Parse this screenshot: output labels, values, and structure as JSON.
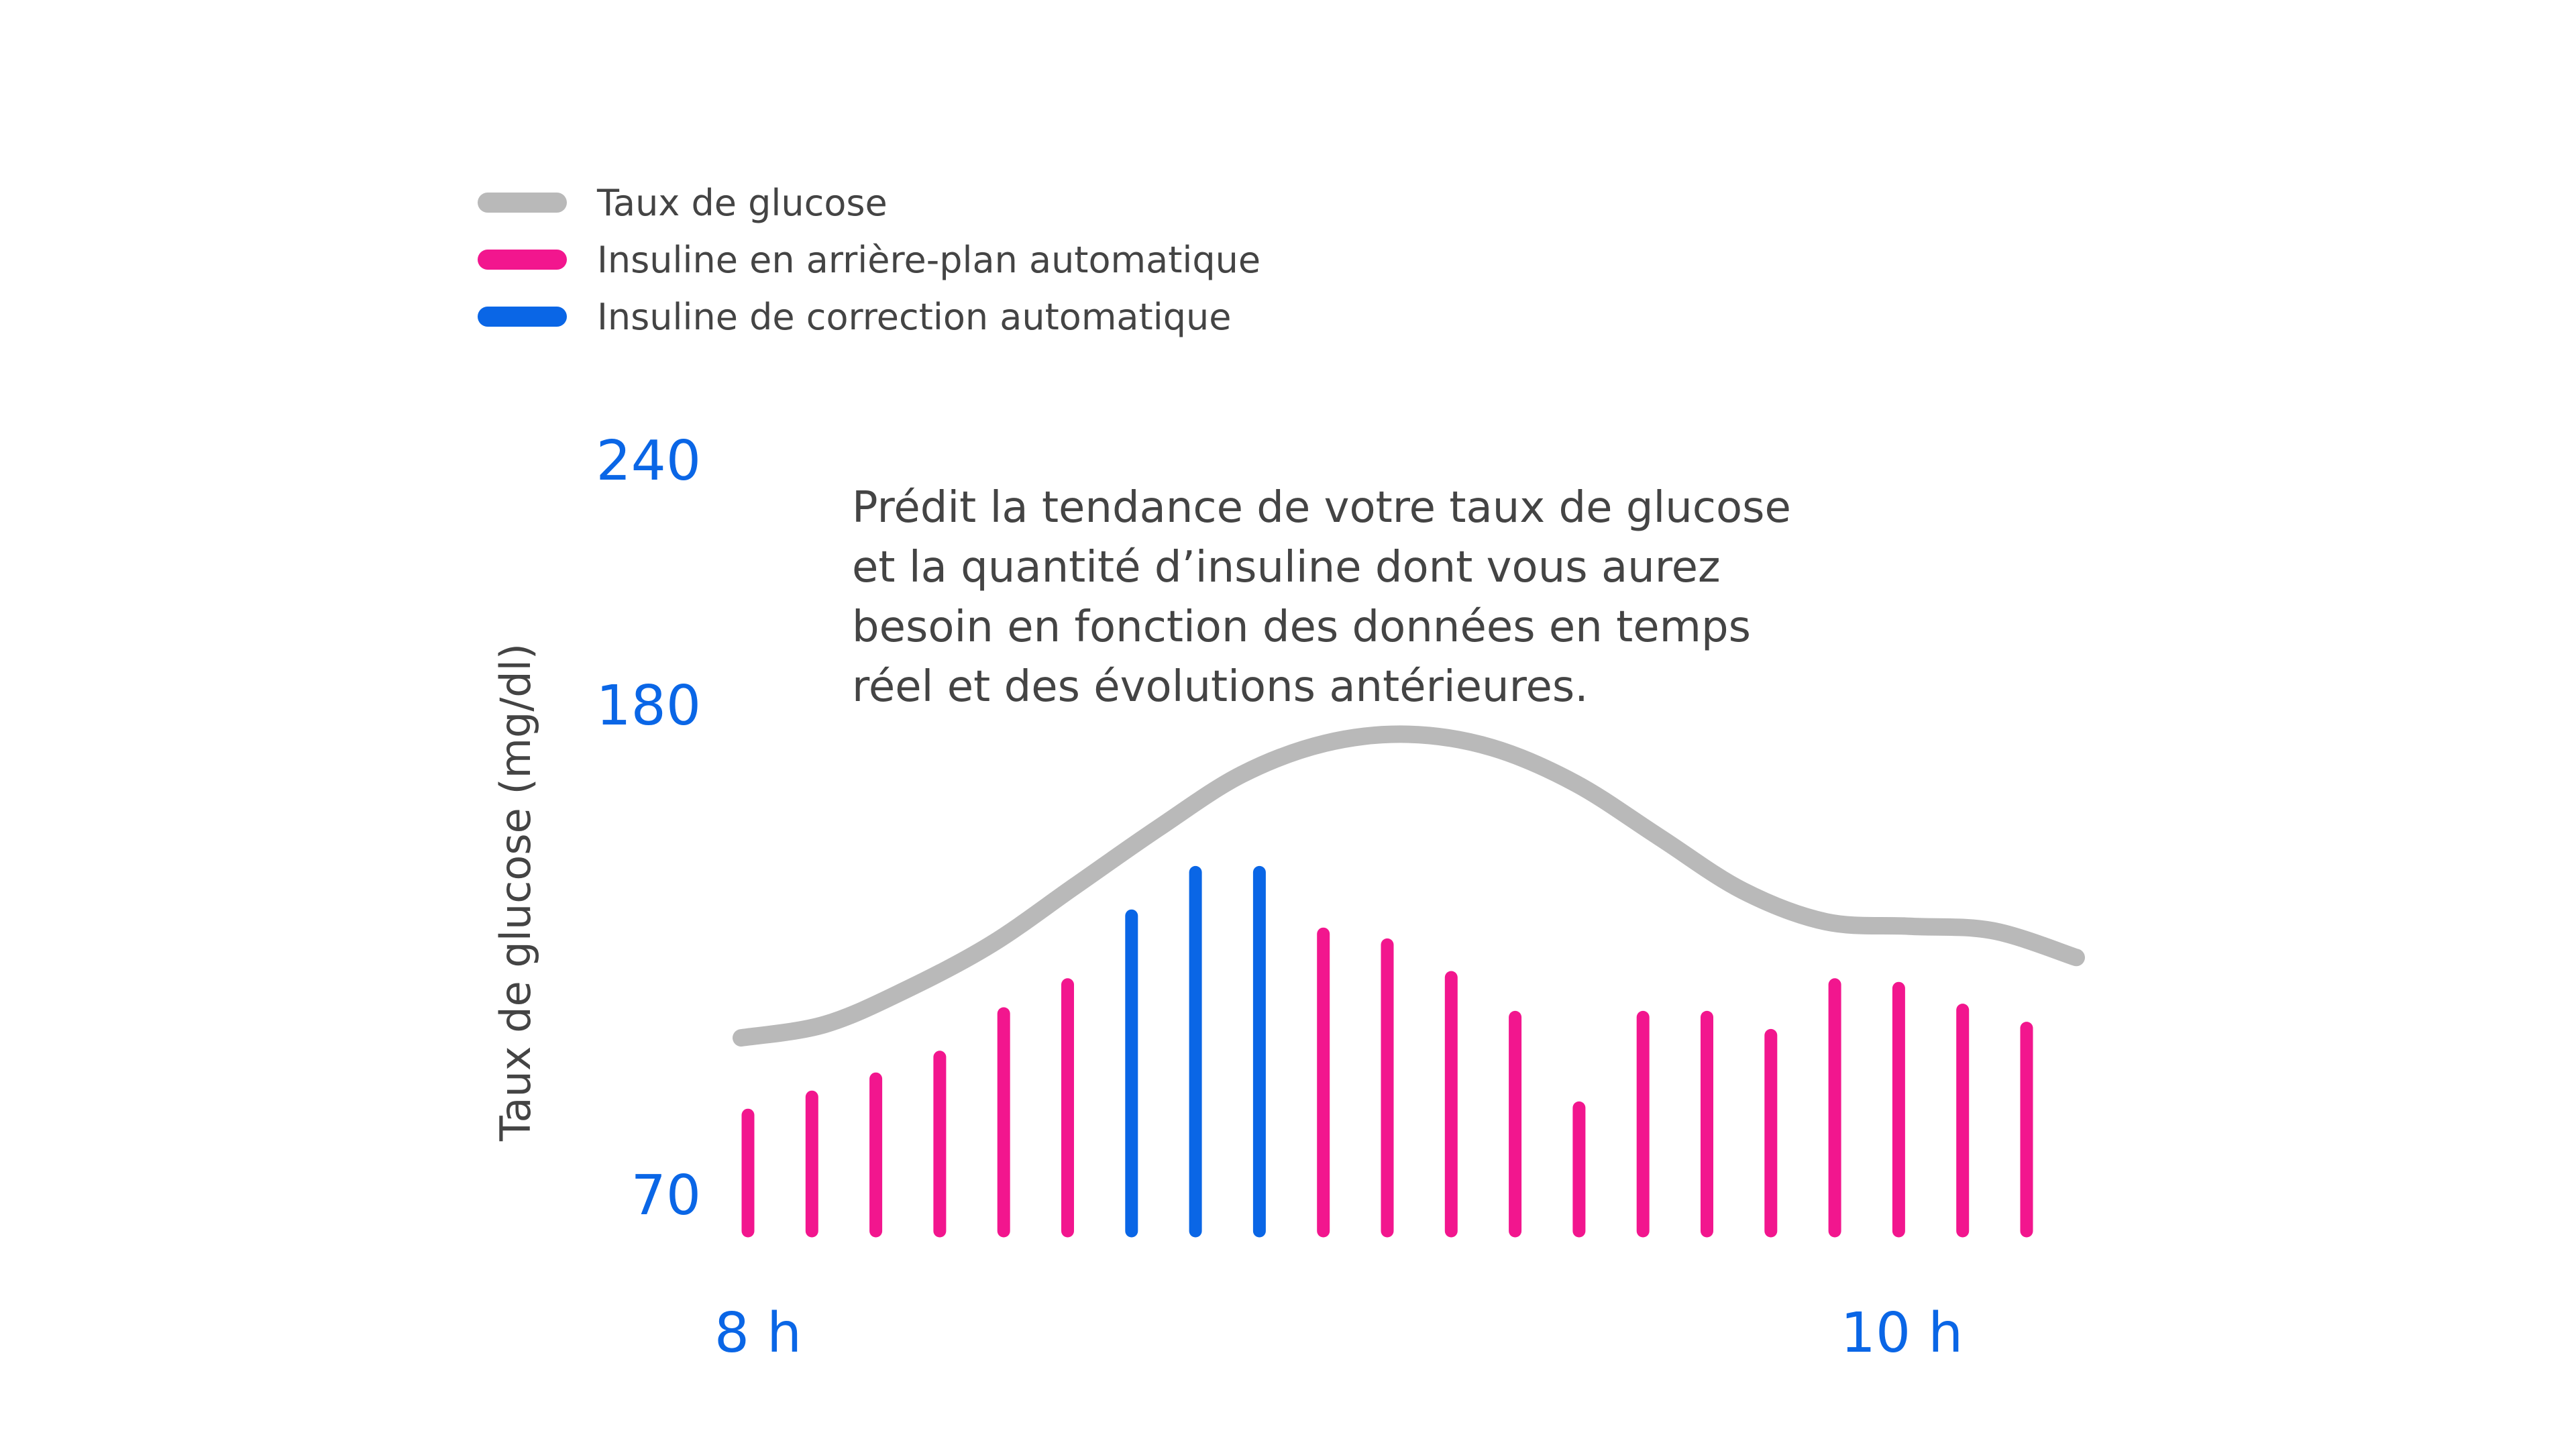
{
  "chart_data": {
    "type": "bar",
    "title": "",
    "annotation": [
      "Prédit la tendance de votre taux de glucose",
      "et la quantité d’insuline dont vous aurez",
      "besoin en fonction des données en temps",
      "réel et des évolutions antérieures."
    ],
    "ylabel": "Taux de glucose (mg/dl)",
    "y_ticks": [
      "240",
      "180",
      "70"
    ],
    "x_ticks": [
      "8 h",
      "10 h"
    ],
    "legend": [
      {
        "label": "Taux de glucose",
        "color": "#b9b9b9"
      },
      {
        "label": "Insuline en arrière-plan automatique",
        "color": "#f2168e"
      },
      {
        "label": "Insuline de correction automatique",
        "color": "#0a66e6"
      }
    ],
    "series": [
      {
        "name": "Taux de glucose",
        "type": "line",
        "color": "#b9b9b9",
        "values": [
          105,
          108,
          116,
          126,
          139,
          152,
          164,
          171,
          173,
          170,
          162,
          150,
          138,
          131,
          130,
          129,
          123
        ]
      },
      {
        "name": "Insuline en arrière-plan automatique",
        "type": "bar",
        "color": "#f2168e",
        "values": [
          0.32,
          0.37,
          0.42,
          0.48,
          0.6,
          0.68,
          null,
          null,
          null,
          0.82,
          0.79,
          0.7,
          0.59,
          0.34,
          0.59,
          0.59,
          0.54,
          0.68,
          0.67,
          0.61,
          0.56
        ]
      },
      {
        "name": "Insuline de correction automatique",
        "type": "bar",
        "color": "#0a66e6",
        "values": [
          null,
          null,
          null,
          null,
          null,
          null,
          0.87,
          0.99,
          0.99,
          null,
          null,
          null,
          null,
          null,
          null,
          null,
          null,
          null,
          null,
          null,
          null
        ]
      }
    ]
  }
}
